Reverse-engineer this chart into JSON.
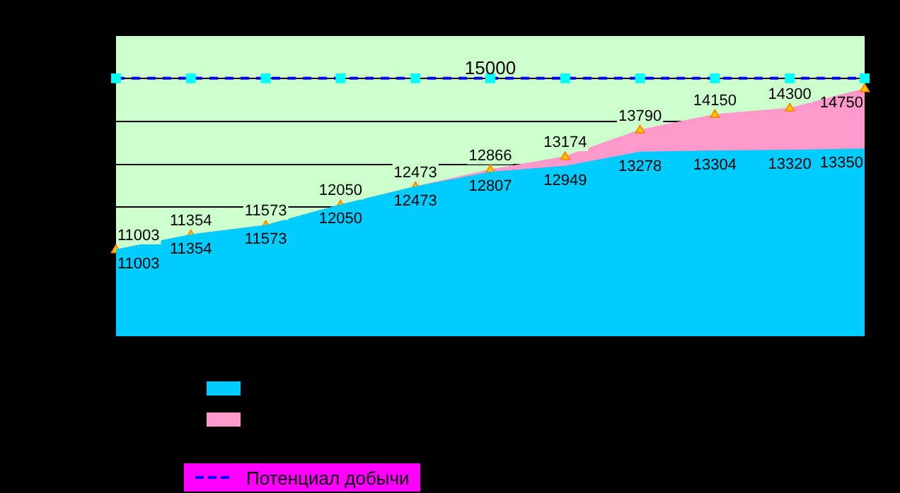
{
  "chart_data": {
    "type": "area",
    "categories": [
      null,
      null,
      null,
      null,
      null,
      null,
      null,
      null,
      null,
      null,
      null
    ],
    "series": [
      {
        "color": "#00ccff",
        "marker": "none",
        "values": [
          11003,
          11354,
          11573,
          12050,
          12473,
          12807,
          12949,
          13278,
          13304,
          13320,
          13350
        ],
        "value_labels": [
          "11003",
          "11354",
          "11573",
          "12050",
          "12473",
          "12807",
          "12949",
          "13278",
          "13304",
          "13320",
          "13350"
        ]
      },
      {
        "color": "#ff99cc",
        "marker": "triangle",
        "values": [
          11003,
          11354,
          11573,
          12050,
          12473,
          12866,
          13174,
          13790,
          14150,
          14300,
          14750
        ],
        "value_labels": [
          "11003",
          "11354",
          "11573",
          "12050",
          "12473",
          "12866",
          "13174",
          "13790",
          "14150",
          "14300",
          "14750"
        ]
      },
      {
        "type": "line",
        "name": "Потенциал добычи",
        "color": "#0000ff",
        "marker": "square",
        "line_style": "dashed",
        "values": [
          15000,
          15000,
          15000,
          15000,
          15000,
          15000,
          15000,
          15000,
          15000,
          15000,
          15000
        ]
      }
    ],
    "annotations": [
      {
        "text": "15000",
        "y": 15000
      }
    ],
    "ylim": [
      9000,
      16000
    ],
    "grid": "y",
    "legend": "bottom",
    "tick_labels": false
  }
}
